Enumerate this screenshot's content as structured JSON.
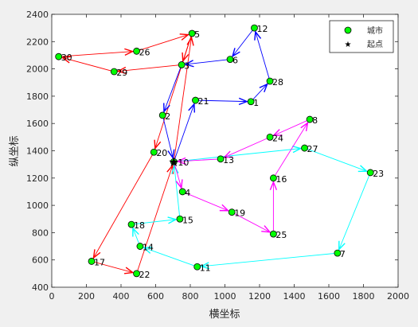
{
  "chart_data": {
    "type": "scatter",
    "title": "",
    "xlabel": "横坐标",
    "ylabel": "纵坐标",
    "xlim": [
      0,
      2000
    ],
    "ylim": [
      400,
      2400
    ],
    "xticks": [
      0,
      200,
      400,
      600,
      800,
      1000,
      1200,
      1400,
      1600,
      1800,
      2000
    ],
    "yticks": [
      400,
      600,
      800,
      1000,
      1200,
      1400,
      1600,
      1800,
      2000,
      2200,
      2400
    ],
    "grid": false,
    "legend": {
      "placement": "top-right",
      "entries": [
        {
          "label": "城市",
          "marker": "circle",
          "color": "#00ff00"
        },
        {
          "label": "起点",
          "marker": "star",
          "color": "#000000"
        }
      ]
    },
    "start": {
      "label": "10",
      "x": 705,
      "y": 1320
    },
    "cities": [
      {
        "label": "1",
        "x": 1150,
        "y": 1760
      },
      {
        "label": "2",
        "x": 640,
        "y": 1660
      },
      {
        "label": "3",
        "x": 750,
        "y": 2030
      },
      {
        "label": "4",
        "x": 755,
        "y": 1100
      },
      {
        "label": "5",
        "x": 810,
        "y": 2260
      },
      {
        "label": "6",
        "x": 1030,
        "y": 2070
      },
      {
        "label": "7",
        "x": 1650,
        "y": 650
      },
      {
        "label": "8",
        "x": 1490,
        "y": 1630
      },
      {
        "label": "11",
        "x": 840,
        "y": 550
      },
      {
        "label": "12",
        "x": 1170,
        "y": 2300
      },
      {
        "label": "13",
        "x": 975,
        "y": 1340
      },
      {
        "label": "14",
        "x": 510,
        "y": 700
      },
      {
        "label": "15",
        "x": 740,
        "y": 900
      },
      {
        "label": "16",
        "x": 1280,
        "y": 1200
      },
      {
        "label": "17",
        "x": 230,
        "y": 590
      },
      {
        "label": "18",
        "x": 460,
        "y": 860
      },
      {
        "label": "19",
        "x": 1040,
        "y": 950
      },
      {
        "label": "20",
        "x": 590,
        "y": 1390
      },
      {
        "label": "21",
        "x": 830,
        "y": 1770
      },
      {
        "label": "22",
        "x": 490,
        "y": 500
      },
      {
        "label": "23",
        "x": 1840,
        "y": 1240
      },
      {
        "label": "24",
        "x": 1260,
        "y": 1500
      },
      {
        "label": "25",
        "x": 1280,
        "y": 790
      },
      {
        "label": "26",
        "x": 490,
        "y": 2130
      },
      {
        "label": "27",
        "x": 1460,
        "y": 1420
      },
      {
        "label": "28",
        "x": 1260,
        "y": 1910
      },
      {
        "label": "29",
        "x": 360,
        "y": 1980
      },
      {
        "label": "30",
        "x": 40,
        "y": 2090
      }
    ],
    "series": [
      {
        "color": "#ff0000",
        "path": [
          "10",
          "5",
          "3",
          "29",
          "30",
          "26",
          "5",
          "20",
          "17",
          "22",
          "10"
        ]
      },
      {
        "color": "#0000ff",
        "path": [
          "10",
          "21",
          "1",
          "28",
          "12",
          "6",
          "3",
          "2",
          "10"
        ]
      },
      {
        "color": "#00ffff",
        "path": [
          "10",
          "27",
          "23",
          "7",
          "11",
          "14",
          "18",
          "15",
          "10"
        ]
      },
      {
        "color": "#ff00ff",
        "path": [
          "10",
          "4",
          "19",
          "25",
          "16",
          "8",
          "24",
          "13",
          "10"
        ]
      }
    ]
  }
}
